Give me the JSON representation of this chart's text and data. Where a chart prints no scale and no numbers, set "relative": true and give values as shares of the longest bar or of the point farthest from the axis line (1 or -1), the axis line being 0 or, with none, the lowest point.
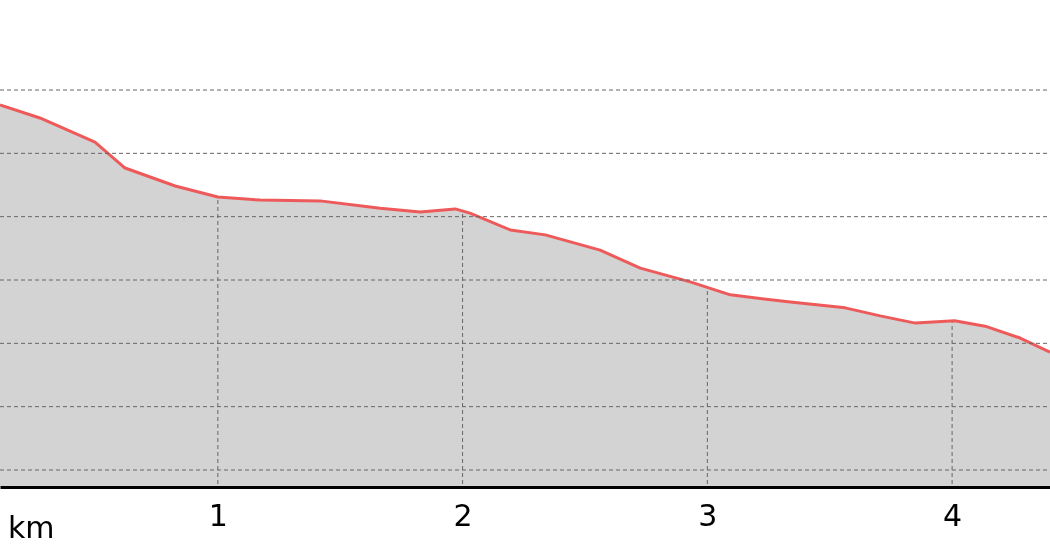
{
  "chart_data": {
    "type": "area",
    "relative": true,
    "xlabel": "km",
    "xlim": [
      0.11,
      4.4
    ],
    "xticks": [
      1,
      2,
      3,
      4
    ],
    "grid": true,
    "series": [
      {
        "color": "#ee5a5a",
        "x": [
          0.11,
          0.273,
          0.498,
          0.621,
          0.826,
          1.0,
          1.173,
          1.418,
          1.663,
          1.827,
          1.97,
          2.03,
          2.195,
          2.338,
          2.562,
          2.726,
          2.93,
          3.094,
          3.339,
          3.563,
          3.706,
          3.85,
          4.01,
          4.135,
          4.278,
          4.4
        ],
        "values": [
          1.0,
          0.966,
          0.903,
          0.835,
          0.788,
          0.759,
          0.751,
          0.749,
          0.73,
          0.72,
          0.728,
          0.717,
          0.673,
          0.66,
          0.62,
          0.573,
          0.537,
          0.503,
          0.484,
          0.469,
          0.448,
          0.429,
          0.435,
          0.421,
          0.39,
          0.353
        ]
      }
    ]
  }
}
